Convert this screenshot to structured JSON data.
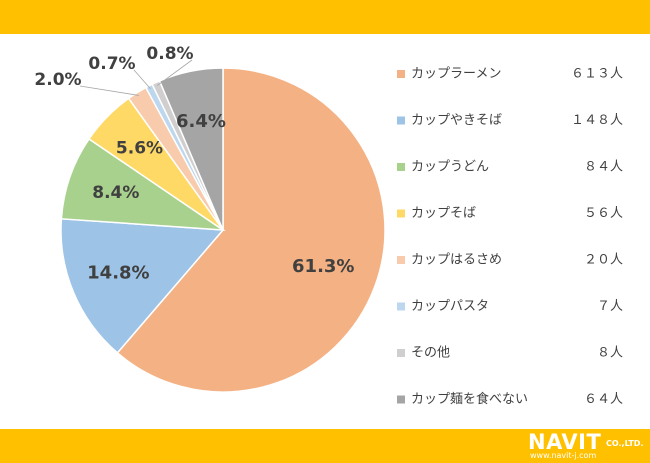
{
  "chart_data": {
    "type": "pie",
    "categories": [
      "カップラーメン",
      "カップやきそば",
      "カップうどん",
      "カップそば",
      "カップはるさめ",
      "カップパスタ",
      "その他",
      "カップ麺を食べない"
    ],
    "values": [
      61.3,
      14.8,
      8.4,
      5.6,
      2.0,
      0.7,
      0.8,
      6.4
    ],
    "value_labels": [
      "61.3%",
      "14.8%",
      "8.4%",
      "5.6%",
      "2.0%",
      "0.7%",
      "0.8%",
      "6.4%"
    ],
    "counts": [
      "６１３人",
      "１４８人",
      "８４人",
      "５６人",
      "２０人",
      "７人",
      "８人",
      "６４人"
    ],
    "colors": [
      "#f4b183",
      "#9dc3e6",
      "#a9d18e",
      "#ffd966",
      "#f8cbad",
      "#bdd7ee",
      "#d0cece",
      "#a5a5a5"
    ],
    "legend_position": "right",
    "start_angle": "12 o'clock",
    "direction": "clockwise"
  },
  "logo": {
    "name": "NAVIT",
    "suffix": "CO.,LTD.",
    "url": "www.navit-j.com"
  }
}
